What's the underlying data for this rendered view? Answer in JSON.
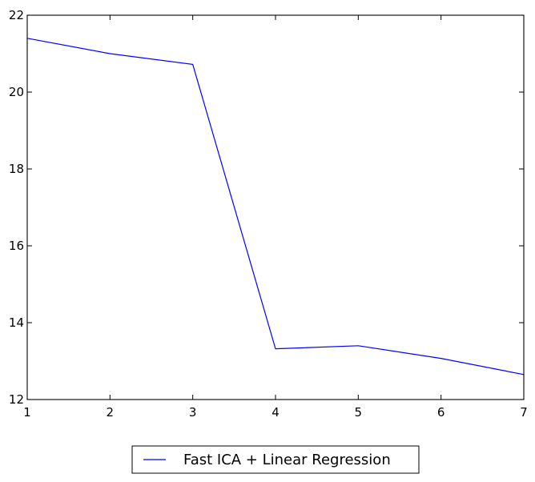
{
  "chart_data": {
    "type": "line",
    "title": "",
    "xlabel": "",
    "ylabel": "",
    "x": [
      1,
      2,
      3,
      4,
      5,
      6,
      7
    ],
    "series": [
      {
        "name": "Fast ICA + Linear Regression",
        "values": [
          21.4,
          21.0,
          20.72,
          13.32,
          13.4,
          13.07,
          12.65
        ],
        "color": "#0000ff"
      }
    ],
    "xlim": [
      1,
      7
    ],
    "ylim": [
      12,
      22
    ],
    "xticks": [
      "1",
      "2",
      "3",
      "4",
      "5",
      "6",
      "7"
    ],
    "yticks": [
      "12",
      "14",
      "16",
      "18",
      "20",
      "22"
    ],
    "grid": false,
    "legend_position": "bottom-center"
  }
}
